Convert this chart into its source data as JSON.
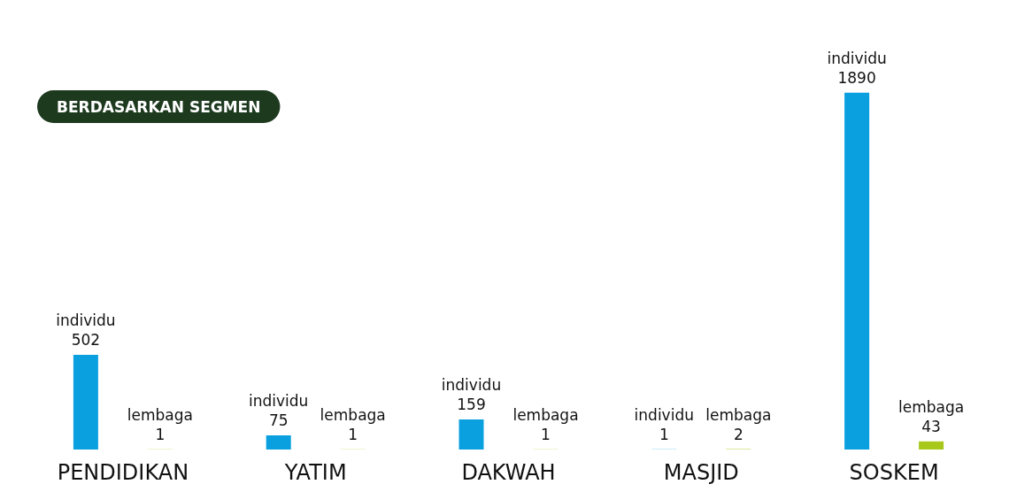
{
  "chart_data": {
    "type": "bar",
    "title": "BERDASARKAN SEGMEN",
    "categories": [
      "PENDIDIKAN",
      "YATIM",
      "DAKWAH",
      "MASJID",
      "SOSKEM"
    ],
    "series": [
      {
        "name": "individu",
        "color": "#0aa0e0",
        "values": [
          502,
          75,
          159,
          1,
          1890
        ]
      },
      {
        "name": "lembaga",
        "color": "#a8c81a",
        "values": [
          1,
          1,
          1,
          2,
          43
        ]
      }
    ],
    "data_labels": true
  }
}
